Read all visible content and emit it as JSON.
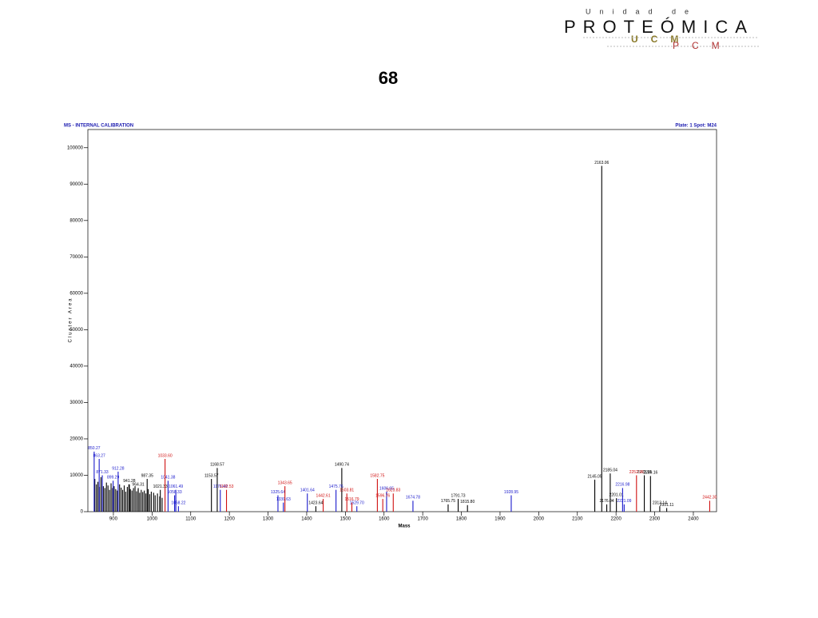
{
  "header": {
    "logo_top": "Unidad de",
    "logo_main": "PROTEÓMICA",
    "logo_ucm": "UCM",
    "logo_pcm": "PCM"
  },
  "slide": {
    "number": "68"
  },
  "chart_data": {
    "type": "stem",
    "title": "MS - INTERNAL CALIBRATION",
    "subtitle": "Plate: 1 Spot: M24",
    "x_label": "Mass",
    "y_label": "Cluster Area",
    "xlim": [
      834,
      2460
    ],
    "ylim": [
      0,
      105000
    ],
    "xticks": [
      900,
      1000,
      1100,
      1200,
      1300,
      1400,
      1500,
      1600,
      1700,
      1800,
      1900,
      2000,
      2100,
      2200,
      2300,
      2400
    ],
    "yticks": [
      0,
      10000,
      20000,
      30000,
      40000,
      50000,
      60000,
      70000,
      80000,
      90000,
      100000
    ],
    "title_color": "#1a1ab0",
    "series": [
      {
        "color": "#000000",
        "x": [
          852,
          856,
          860,
          864,
          868,
          874,
          878,
          882,
          886,
          890,
          894,
          898,
          902,
          906,
          910,
          916,
          920,
          924,
          928,
          932,
          936,
          940,
          944,
          948,
          952,
          956,
          960,
          964,
          968,
          972,
          976,
          980,
          984,
          990,
          994,
          998,
          1004,
          1008,
          1014,
          1020,
          1026
        ],
        "values": [
          9000,
          7500,
          8200,
          6800,
          9500,
          7000,
          6500,
          8000,
          7200,
          6000,
          7800,
          6500,
          7000,
          6200,
          5800,
          7500,
          6600,
          6000,
          7200,
          5500,
          6800,
          7500,
          6200,
          5800,
          6500,
          7000,
          5600,
          6200,
          5200,
          6000,
          5400,
          5800,
          5000,
          6200,
          4800,
          5500,
          5200,
          4500,
          5000,
          4200,
          3800
        ],
        "labels": [
          null,
          null,
          null,
          null,
          null,
          null,
          null,
          null,
          null,
          null,
          null,
          null,
          null,
          null,
          null,
          null,
          null,
          null,
          null,
          null,
          null,
          null,
          null,
          null,
          null,
          null,
          null,
          null,
          null,
          null,
          null,
          null,
          null,
          null,
          null,
          null,
          null,
          null,
          null,
          null,
          null
        ]
      },
      {
        "color": "#000000",
        "x": [
          941.28,
          964.31,
          987.35,
          1021.33,
          1153.57,
          1168.57,
          1423.64,
          1490.74,
          1765.75,
          1791.73,
          1815.8,
          2145.05,
          2163.06,
          2176.04,
          2185.04,
          2201.01,
          2273.16,
          2289.16,
          2313.14,
          2331.11
        ],
        "values": [
          7500,
          6500,
          9000,
          6000,
          9000,
          12000,
          1500,
          12000,
          2000,
          3500,
          1800,
          8800,
          95000,
          2000,
          10500,
          3700,
          10000,
          9800,
          1500,
          1000
        ],
        "labels": [
          "941.28",
          "964.31",
          "987.35",
          "1021.33",
          "1153.57",
          "1168.57",
          "1423.64",
          "1490.74",
          "1765.75",
          "1791.73",
          "1815.80",
          "2145.05",
          "2163.06",
          "2176.04",
          "2185.04",
          "2201.01",
          "2273.16",
          "2289.16",
          "2313.14",
          "2331.11"
        ]
      },
      {
        "color": "#1a1acc",
        "x": [
          850.27,
          863.27,
          871.33,
          899.29,
          912.28,
          1041.38,
          1058.33,
          1061.49,
          1068.22,
          1176.49,
          1325.64,
          1339.63,
          1401.64,
          1475.76,
          1529.7,
          1606.65,
          1674.78,
          1928.95,
          2216.98,
          2221.09
        ],
        "values": [
          16500,
          14500,
          10000,
          8500,
          11000,
          8500,
          4500,
          6000,
          1500,
          6000,
          4500,
          2500,
          5000,
          6000,
          1500,
          5500,
          3000,
          4500,
          6500,
          2000
        ],
        "labels": [
          "850.27",
          "863.27",
          "871.33",
          "899.29",
          "912.28",
          "1041.38",
          "1058.33",
          "1061.49",
          "1068.22",
          "1176.49",
          "1325.64",
          "1339.63",
          "1401.64",
          "1475.76",
          "1529.70",
          "1606.65",
          "1674.78",
          "1928.95",
          "2216.98",
          "2221.09"
        ]
      },
      {
        "color": "#d01010",
        "x": [
          1033.6,
          1192.53,
          1343.65,
          1442.61,
          1503.81,
          1516.79,
          1582.75,
          1596.76,
          1623.83,
          2252.96,
          2442.3
        ],
        "values": [
          14500,
          6000,
          7000,
          3500,
          5000,
          2500,
          9000,
          3500,
          5000,
          10000,
          3000
        ],
        "labels": [
          "1033.60",
          "1192.53",
          "1343.65",
          "1442.61",
          "1503.81",
          "1516.79",
          "1582.75",
          "1596.76",
          "1623.83",
          "2252.96",
          "2442.30"
        ]
      }
    ]
  }
}
